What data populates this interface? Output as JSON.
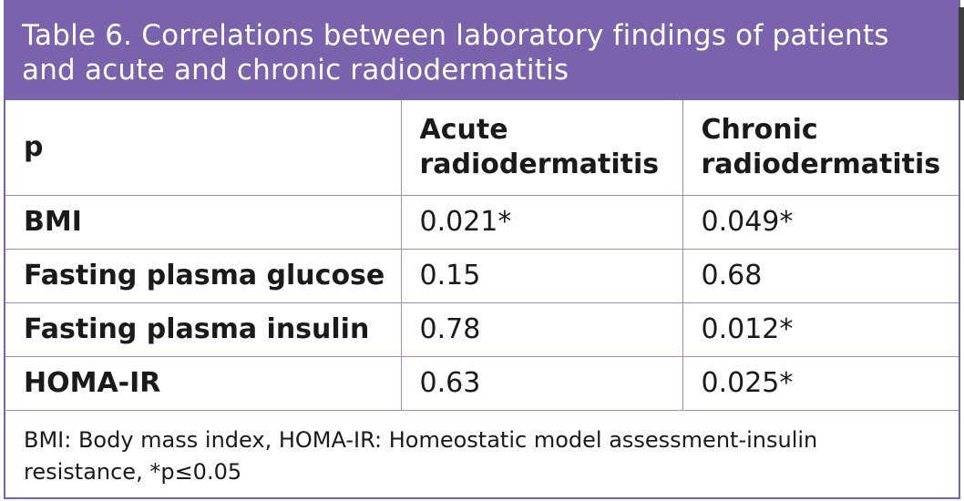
{
  "table": {
    "title_line1": "Table 6. Correlations between laboratory findings of patients",
    "title_line2": "and acute and chronic radiodermatitis",
    "header": {
      "col1": "p",
      "col2_line1": "Acute",
      "col2_line2": "radiodermatitis",
      "col3_line1": "Chronic",
      "col3_line2": "radiodermatitis"
    },
    "rows": [
      {
        "label": "BMI",
        "acute": "0.021*",
        "chronic": "0.049*"
      },
      {
        "label": "Fasting plasma glucose",
        "acute": "0.15",
        "chronic": "0.68"
      },
      {
        "label": "Fasting plasma insulin",
        "acute": "0.78",
        "chronic": "0.012*"
      },
      {
        "label": "HOMA-IR",
        "acute": "0.63",
        "chronic": "0.025*"
      }
    ],
    "footnote_line1": "BMI: Body mass index, HOMA-IR: Homeostatic model assessment-insulin",
    "footnote_line2": "resistance, *p≤0.05"
  },
  "colors": {
    "title_bg": "#7b62ad",
    "border": "#9d8cc6",
    "title_text": "#ffffff"
  }
}
